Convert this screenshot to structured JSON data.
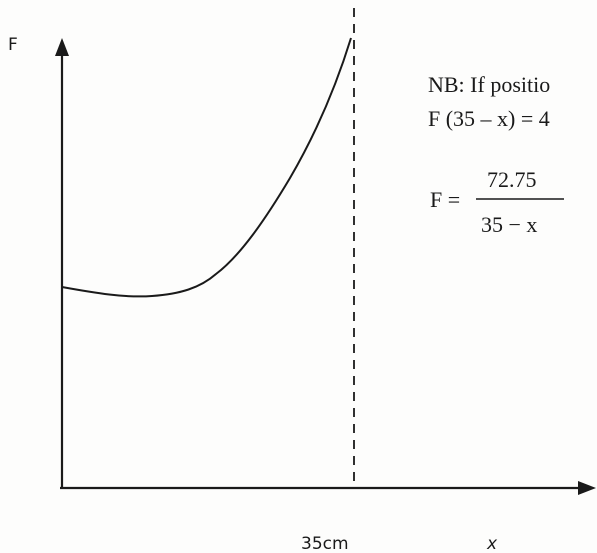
{
  "axes": {
    "y_label": "F",
    "x_label": "x",
    "x_marker_label": "35cm"
  },
  "note": {
    "line1": "NB: If positio",
    "line2": "F (35 – x) = 4",
    "formula_lhs": "F =",
    "formula_numerator": "72.75",
    "formula_denominator": "35 − x"
  },
  "colors": {
    "ink": "#1a1a1a",
    "paper": "#fdfdfc"
  }
}
